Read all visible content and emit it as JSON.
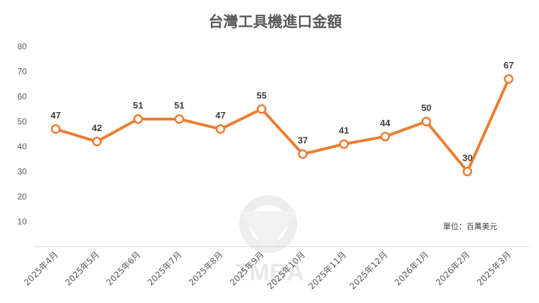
{
  "chart_data": {
    "type": "line",
    "title": "台灣工具機進口金額",
    "unit_note": "單位：百萬美元",
    "watermark": "TMBA",
    "categories": [
      "2025年4月",
      "2025年5月",
      "2025年6月",
      "2025年7月",
      "2025年8月",
      "2025年9月",
      "2025年10月",
      "2025年11月",
      "2025年12月",
      "2026年1月",
      "2026年2月",
      "2025年3月"
    ],
    "series": [
      {
        "values": [
          47,
          42,
          51,
          51,
          47,
          55,
          37,
          41,
          44,
          50,
          30,
          67
        ]
      }
    ],
    "y_ticks": [
      "10",
      "20",
      "30",
      "40",
      "50",
      "60",
      "70",
      "80"
    ],
    "ylim": [
      0,
      80
    ],
    "grid": false,
    "colors": {
      "line": "#ED7D31",
      "marker_fill": "#ffffff"
    }
  }
}
